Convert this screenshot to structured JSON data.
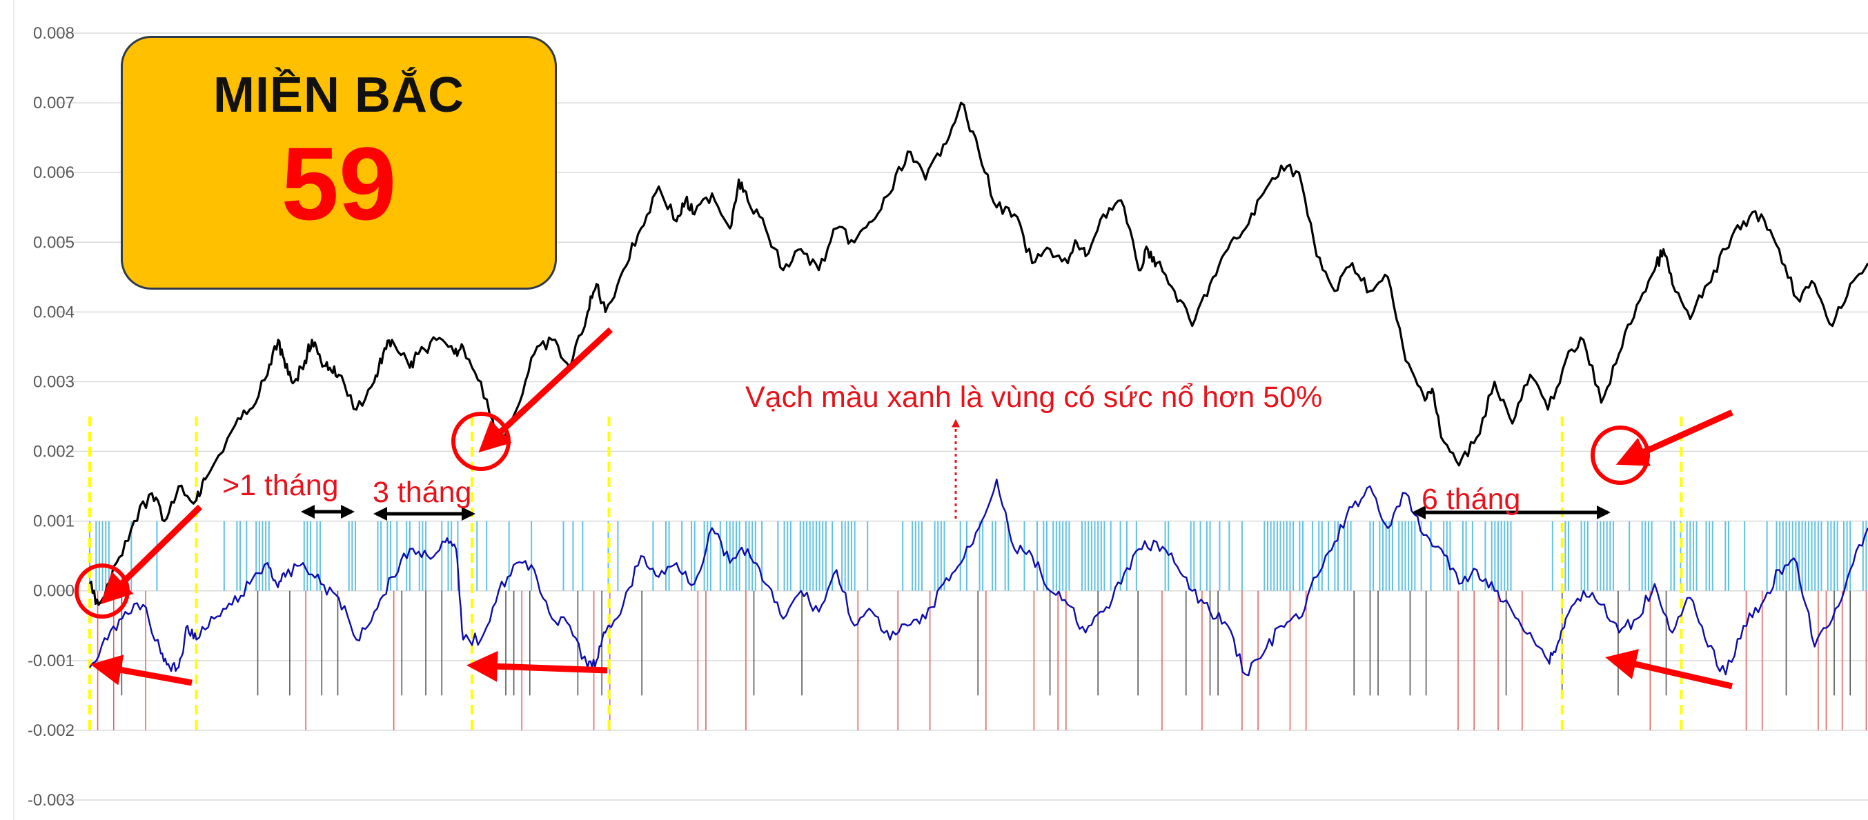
{
  "title_box": {
    "label": "MIỀN BẮC",
    "number": "59"
  },
  "annotations": {
    "note": "Vạch màu xanh là vùng có sức nổ hơn 50%",
    "gap1": ">1 tháng",
    "gap2": "3 tháng",
    "gap3": "6 tháng"
  },
  "colors": {
    "black_series": "#000000",
    "blue_series": "#0B0BB0",
    "cyan_bars": "#5EC3E8",
    "red_bars": "#F06060",
    "dark_bars": "#555555",
    "markers": "#FF0000",
    "vertical_guides": "#FFFF00",
    "title_box": "#FFC000"
  },
  "chart_data": {
    "type": "line",
    "title": "",
    "xlabel": "",
    "ylabel": "",
    "ylim": [
      -0.003,
      0.008
    ],
    "yticks": [
      "0.008",
      "0.007",
      "0.006",
      "0.005",
      "0.004",
      "0.003",
      "0.002",
      "0.001",
      "0.000",
      "-0.001",
      "-0.002",
      "-0.003"
    ],
    "grid": true,
    "x_range": [
      0,
      100
    ],
    "series": [
      {
        "role": "black",
        "x": [
          0,
          0.5,
          1.5,
          2.5,
          3.5,
          4.2,
          5,
          6,
          6.5,
          8,
          9,
          10,
          10.6,
          11,
          11.5,
          12.1,
          12.5,
          13,
          13.5,
          14,
          15,
          16,
          16.5,
          17,
          18,
          18.5,
          19.5,
          20.5,
          21,
          22,
          23,
          24,
          25,
          26,
          27,
          28,
          28.5,
          29,
          30,
          31,
          32,
          33,
          33.5,
          34,
          35,
          36,
          36.5,
          37,
          38,
          39,
          40,
          41,
          42,
          43,
          44,
          45,
          46,
          47,
          48,
          49,
          50,
          51,
          52,
          53,
          54,
          55,
          55.5,
          56,
          57,
          58,
          59,
          59.5,
          60,
          61,
          62,
          63,
          64,
          65,
          66,
          67,
          68,
          69,
          70,
          71,
          72,
          73,
          74,
          75,
          75.5,
          76,
          77,
          78,
          79,
          80,
          81,
          82,
          83,
          84,
          85,
          86,
          87,
          88,
          88.5,
          89,
          90,
          91,
          92,
          93,
          94,
          95,
          96,
          97,
          98,
          99,
          100
        ],
        "values": [
          0.0001,
          -0.0002,
          0.0004,
          0.001,
          0.0014,
          0.001,
          0.0015,
          0.0013,
          0.0016,
          0.0023,
          0.0026,
          0.0031,
          0.0036,
          0.0032,
          0.003,
          0.0033,
          0.0036,
          0.0033,
          0.0032,
          0.0031,
          0.0026,
          0.003,
          0.0034,
          0.0036,
          0.0032,
          0.0034,
          0.0036,
          0.0034,
          0.0035,
          0.003,
          0.0021,
          0.0026,
          0.0034,
          0.0036,
          0.0032,
          0.004,
          0.0044,
          0.004,
          0.0046,
          0.0052,
          0.0058,
          0.0053,
          0.0056,
          0.0054,
          0.0057,
          0.0052,
          0.0059,
          0.0056,
          0.0052,
          0.0046,
          0.0049,
          0.0046,
          0.0052,
          0.005,
          0.0053,
          0.0057,
          0.0063,
          0.0059,
          0.0064,
          0.007,
          0.0063,
          0.0055,
          0.0054,
          0.0047,
          0.0049,
          0.0047,
          0.005,
          0.0048,
          0.0054,
          0.0056,
          0.0046,
          0.0049,
          0.0047,
          0.0043,
          0.0038,
          0.0044,
          0.0049,
          0.0052,
          0.0057,
          0.0061,
          0.006,
          0.0048,
          0.0043,
          0.0047,
          0.0043,
          0.0045,
          0.0033,
          0.0028,
          0.0029,
          0.0022,
          0.0018,
          0.0022,
          0.003,
          0.0024,
          0.0031,
          0.0026,
          0.0033,
          0.0036,
          0.0027,
          0.0034,
          0.0041,
          0.0046,
          0.0049,
          0.0044,
          0.0039,
          0.0044,
          0.0049,
          0.0053,
          0.0054,
          0.0049,
          0.0042,
          0.0044,
          0.0038,
          0.0044,
          0.0047
        ]
      },
      {
        "role": "blue",
        "x": [
          0,
          1,
          2,
          3,
          4,
          4.5,
          5,
          5.5,
          6,
          7,
          8,
          9,
          10,
          10.5,
          11,
          12,
          13,
          14,
          15,
          16,
          17,
          18,
          19,
          20,
          20.6,
          21,
          22,
          23,
          24,
          25,
          26,
          27,
          28,
          28.5,
          29,
          30,
          31,
          32,
          33,
          34,
          35,
          36,
          37,
          38,
          39,
          40,
          41,
          42,
          43,
          44,
          45,
          46,
          47,
          48,
          49,
          50,
          51,
          52,
          53,
          54,
          55,
          56,
          57,
          58,
          59,
          60,
          61,
          62,
          63,
          64,
          65,
          66,
          67,
          68,
          69,
          70,
          71,
          72,
          73,
          74,
          75,
          76,
          77,
          78,
          79,
          80,
          81,
          82,
          82.5,
          83,
          84,
          85,
          86,
          87,
          88,
          89,
          90,
          91,
          92,
          93,
          94,
          95,
          96,
          97,
          98,
          99,
          100
        ],
        "values": [
          -0.0011,
          -0.0007,
          -0.0003,
          -0.0002,
          -0.0009,
          -0.0011,
          -0.0011,
          -0.0005,
          -0.0007,
          -0.0004,
          -0.0002,
          0.0001,
          0.0004,
          0.0001,
          0.0002,
          0.0004,
          0.0001,
          -0.0001,
          -0.0007,
          -0.0003,
          0.0002,
          0.0006,
          0.0005,
          0.0007,
          0.0006,
          -0.0007,
          -0.0007,
          0.0,
          0.0004,
          0.0003,
          -0.0004,
          -0.0005,
          -0.0011,
          -0.001,
          -0.0006,
          -0.0002,
          0.0005,
          0.0002,
          0.0004,
          0.0001,
          0.0009,
          0.0004,
          0.0006,
          0.0001,
          -0.0004,
          0.0,
          -0.0003,
          0.0003,
          -0.0005,
          -0.0003,
          -0.0007,
          -0.0005,
          -0.0004,
          0.0001,
          0.0004,
          0.0009,
          0.0016,
          0.0006,
          0.0005,
          0.0,
          -0.0002,
          -0.0006,
          -0.0003,
          0.0001,
          0.0006,
          0.0007,
          0.0004,
          0.0,
          -0.0003,
          -0.0005,
          -0.0012,
          -0.0009,
          -0.0005,
          -0.0004,
          0.0002,
          0.0007,
          0.0012,
          0.0015,
          0.0009,
          0.0014,
          0.0008,
          0.0006,
          0.0001,
          0.0003,
          0.0,
          -0.0003,
          -0.0006,
          -0.001,
          -0.0008,
          -0.0004,
          0.0,
          -0.0002,
          -0.0006,
          -0.0004,
          0.0001,
          -0.0006,
          -0.0001,
          -0.0008,
          -0.0012,
          -0.0005,
          -0.0002,
          0.0003,
          0.0004,
          -0.0008,
          -0.0004,
          0.0003,
          0.0009
        ]
      }
    ],
    "vertical_guides_x": [
      0,
      6,
      21.5,
      29.2,
      82.8,
      89.5
    ]
  }
}
